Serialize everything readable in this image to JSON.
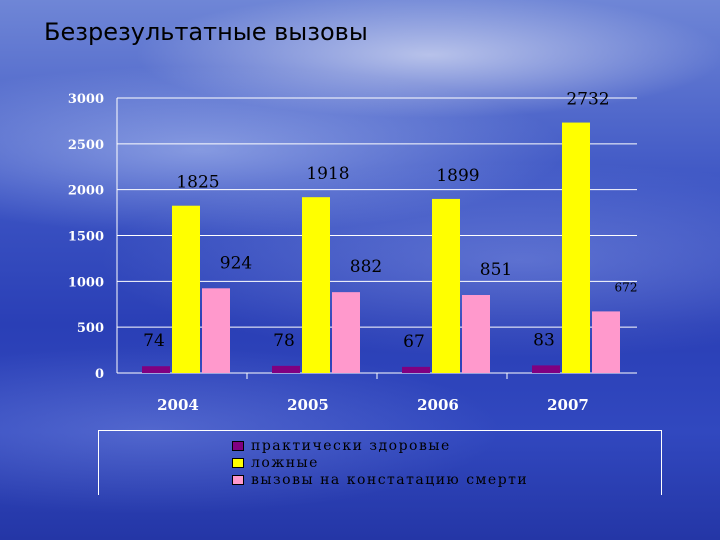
{
  "slide": {
    "title": "Безрезультатные вызовы"
  },
  "colors": {
    "series_1": "#800080",
    "series_2": "#ffff00",
    "series_3": "#ff99cc"
  },
  "chart_data": {
    "type": "bar",
    "categories": [
      "2004",
      "2005",
      "2006",
      "2007"
    ],
    "series": [
      {
        "name": "практически здоровые",
        "values": [
          74,
          78,
          67,
          83
        ]
      },
      {
        "name": "ложные",
        "values": [
          1825,
          1918,
          1899,
          2732
        ]
      },
      {
        "name": "вызовы на констатацию смерти",
        "values": [
          924,
          882,
          851,
          672
        ]
      }
    ],
    "y_ticks": [
      "0",
      "500",
      "1000",
      "1500",
      "2000",
      "2500",
      "3000"
    ],
    "ylim": [
      0,
      3000
    ],
    "legend_position": "bottom",
    "grid": true
  }
}
